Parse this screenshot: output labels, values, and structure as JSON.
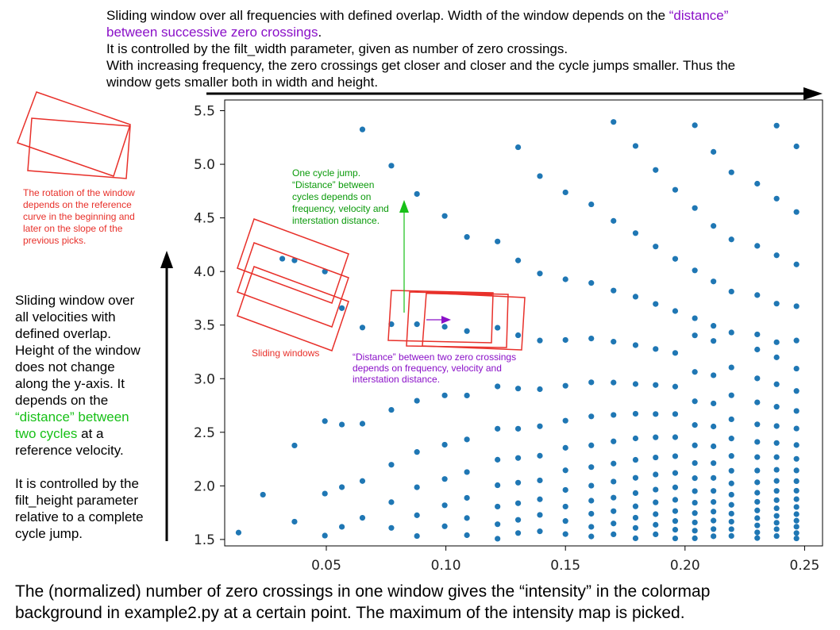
{
  "top_text": {
    "line1_a": "Sliding window over all frequencies with defined overlap. Width of the window depends on the ",
    "line1_b": "“distance”",
    "line2_a": "between successive zero crossings",
    "line2_b": ".",
    "line3": "It is controlled by the filt_width parameter, given as number of zero crossings.",
    "line4": "With increasing frequency, the zero crossings get closer and closer and the cycle jumps smaller. Thus the",
    "line5": "window gets smaller both in width and height."
  },
  "left_text": {
    "l1": "Sliding window over",
    "l2": "all velocities with",
    "l3": "defined overlap.",
    "l4": "Height of the window",
    "l5": "does not change",
    "l6": "along the y-axis. It",
    "l7": "depends on the",
    "l8": "“distance” between",
    "l9a": "two cycles",
    "l9b": " at a",
    "l10": "reference velocity.",
    "l11": "It is controlled by the",
    "l12": "filt_height parameter",
    "l13": "relative to a complete",
    "l14": "cycle jump."
  },
  "rotation_note": {
    "l1": "The rotation of the window",
    "l2": "depends on the reference",
    "l3": "curve in the beginning and",
    "l4": "later on the slope of the",
    "l5": "previous picks."
  },
  "sliding_windows_label": "Sliding windows",
  "cycle_jump_note": {
    "l1": "One cycle jump.",
    "l2": "“Distance” between",
    "l3": "cycles depends on",
    "l4": "frequency, velocity and",
    "l5": "interstation distance."
  },
  "zero_cross_note": {
    "l1": "“Distance” between two zero crossings",
    "l2": "depends on frequency, velocity and",
    "l3": "interstation distance."
  },
  "bottom_text": {
    "l1": "The (normalized) number of zero crossings in one window gives the “intensity” in the colormap",
    "l2": "background in example2.py at a certain point. The maximum of the intensity map is picked."
  },
  "colors": {
    "points": "#1f77b4",
    "windows": "#e8302a",
    "green": "#17c017",
    "purple": "#8a10c8"
  },
  "chart_data": {
    "type": "scatter",
    "xlim": [
      0.0075,
      0.2575
    ],
    "ylim": [
      1.44,
      5.6
    ],
    "xticks": [
      "0.05",
      "0.10",
      "0.15",
      "0.20",
      "0.25"
    ],
    "xtick_values": [
      0.05,
      0.1,
      0.15,
      0.2,
      0.25
    ],
    "yticks": [
      "1.5",
      "2.0",
      "2.5",
      "3.0",
      "3.5",
      "4.0",
      "4.5",
      "5.0",
      "5.5"
    ],
    "ytick_values": [
      1.5,
      2.0,
      2.5,
      3.0,
      3.5,
      4.0,
      4.5,
      5.0,
      5.5
    ],
    "grid": false,
    "points": [
      [
        0.0133,
        1.564
      ],
      [
        0.0235,
        1.918
      ],
      [
        0.0367,
        1.666
      ],
      [
        0.0367,
        2.377
      ],
      [
        0.0316,
        4.119
      ],
      [
        0.0367,
        4.104
      ],
      [
        0.0494,
        4.0
      ],
      [
        0.0494,
        1.536
      ],
      [
        0.0494,
        1.928
      ],
      [
        0.0494,
        2.604
      ],
      [
        0.0565,
        1.618
      ],
      [
        0.0565,
        1.988
      ],
      [
        0.0565,
        2.572
      ],
      [
        0.0565,
        3.658
      ],
      [
        0.0651,
        1.702
      ],
      [
        0.0651,
        2.045
      ],
      [
        0.0651,
        2.58
      ],
      [
        0.0651,
        3.477
      ],
      [
        0.0651,
        5.325
      ],
      [
        0.0772,
        1.608
      ],
      [
        0.0772,
        1.848
      ],
      [
        0.0772,
        2.197
      ],
      [
        0.0772,
        2.709
      ],
      [
        0.0772,
        3.508
      ],
      [
        0.0772,
        4.987
      ],
      [
        0.0879,
        1.532
      ],
      [
        0.0879,
        1.726
      ],
      [
        0.0879,
        1.987
      ],
      [
        0.0879,
        2.316
      ],
      [
        0.0879,
        2.794
      ],
      [
        0.0879,
        3.508
      ],
      [
        0.0879,
        4.723
      ],
      [
        0.0995,
        1.623
      ],
      [
        0.0995,
        1.819
      ],
      [
        0.0995,
        2.064
      ],
      [
        0.0995,
        2.384
      ],
      [
        0.0995,
        2.844
      ],
      [
        0.0995,
        3.484
      ],
      [
        0.0995,
        4.518
      ],
      [
        0.1088,
        1.54
      ],
      [
        0.1088,
        1.7
      ],
      [
        0.1088,
        1.888
      ],
      [
        0.1088,
        2.129
      ],
      [
        0.1088,
        2.433
      ],
      [
        0.1088,
        2.843
      ],
      [
        0.1088,
        3.444
      ],
      [
        0.1088,
        4.322
      ],
      [
        0.1216,
        1.507
      ],
      [
        0.1216,
        1.642
      ],
      [
        0.1216,
        1.807
      ],
      [
        0.1216,
        2.006
      ],
      [
        0.1216,
        2.244
      ],
      [
        0.1216,
        2.533
      ],
      [
        0.1216,
        2.928
      ],
      [
        0.1216,
        3.475
      ],
      [
        0.1216,
        4.28
      ],
      [
        0.1302,
        1.56
      ],
      [
        0.1302,
        1.683
      ],
      [
        0.1302,
        1.838
      ],
      [
        0.1302,
        2.03
      ],
      [
        0.1302,
        2.26
      ],
      [
        0.1302,
        2.533
      ],
      [
        0.1302,
        2.908
      ],
      [
        0.1302,
        3.405
      ],
      [
        0.1302,
        4.103
      ],
      [
        0.1302,
        5.159
      ],
      [
        0.1393,
        1.576
      ],
      [
        0.1393,
        1.729
      ],
      [
        0.1393,
        1.875
      ],
      [
        0.1393,
        2.051
      ],
      [
        0.1393,
        2.281
      ],
      [
        0.1393,
        2.556
      ],
      [
        0.1393,
        2.902
      ],
      [
        0.1393,
        3.356
      ],
      [
        0.1393,
        3.981
      ],
      [
        0.1393,
        4.89
      ],
      [
        0.15,
        1.55
      ],
      [
        0.15,
        1.672
      ],
      [
        0.15,
        1.807
      ],
      [
        0.15,
        1.962
      ],
      [
        0.15,
        2.145
      ],
      [
        0.15,
        2.355
      ],
      [
        0.15,
        2.608
      ],
      [
        0.15,
        2.934
      ],
      [
        0.15,
        3.361
      ],
      [
        0.15,
        3.927
      ],
      [
        0.15,
        4.738
      ],
      [
        0.1608,
        1.528
      ],
      [
        0.1608,
        1.618
      ],
      [
        0.1608,
        1.74
      ],
      [
        0.1608,
        1.862
      ],
      [
        0.1608,
        2.002
      ],
      [
        0.1608,
        2.175
      ],
      [
        0.1608,
        2.378
      ],
      [
        0.1608,
        2.648
      ],
      [
        0.1608,
        2.966
      ],
      [
        0.1608,
        3.375
      ],
      [
        0.1608,
        3.893
      ],
      [
        0.1608,
        4.626
      ],
      [
        0.1701,
        1.548
      ],
      [
        0.1701,
        1.649
      ],
      [
        0.1701,
        1.764
      ],
      [
        0.1701,
        1.89
      ],
      [
        0.1701,
        2.04
      ],
      [
        0.1701,
        2.208
      ],
      [
        0.1701,
        2.415
      ],
      [
        0.1701,
        2.662
      ],
      [
        0.1701,
        2.964
      ],
      [
        0.1701,
        3.345
      ],
      [
        0.1701,
        3.822
      ],
      [
        0.1701,
        4.472
      ],
      [
        0.1701,
        5.395
      ],
      [
        0.1793,
        1.511
      ],
      [
        0.1793,
        1.608
      ],
      [
        0.1793,
        1.703
      ],
      [
        0.1793,
        1.809
      ],
      [
        0.1793,
        1.933
      ],
      [
        0.1793,
        2.075
      ],
      [
        0.1793,
        2.243
      ],
      [
        0.1793,
        2.443
      ],
      [
        0.1793,
        2.673
      ],
      [
        0.1793,
        2.95
      ],
      [
        0.1793,
        3.313
      ],
      [
        0.1793,
        3.765
      ],
      [
        0.1793,
        4.358
      ],
      [
        0.1793,
        5.171
      ],
      [
        0.1877,
        1.548
      ],
      [
        0.1877,
        1.637
      ],
      [
        0.1877,
        1.736
      ],
      [
        0.1877,
        1.846
      ],
      [
        0.1877,
        1.965
      ],
      [
        0.1877,
        2.106
      ],
      [
        0.1877,
        2.265
      ],
      [
        0.1877,
        2.453
      ],
      [
        0.1877,
        2.67
      ],
      [
        0.1877,
        2.941
      ],
      [
        0.1877,
        3.277
      ],
      [
        0.1877,
        3.697
      ],
      [
        0.1877,
        4.233
      ],
      [
        0.1877,
        4.947
      ],
      [
        0.1959,
        1.51
      ],
      [
        0.1959,
        1.591
      ],
      [
        0.1959,
        1.672
      ],
      [
        0.1959,
        1.765
      ],
      [
        0.1959,
        1.87
      ],
      [
        0.1959,
        1.986
      ],
      [
        0.1959,
        2.12
      ],
      [
        0.1959,
        2.277
      ],
      [
        0.1959,
        2.454
      ],
      [
        0.1959,
        2.67
      ],
      [
        0.1959,
        2.926
      ],
      [
        0.1959,
        3.24
      ],
      [
        0.1959,
        3.631
      ],
      [
        0.1959,
        4.118
      ],
      [
        0.1959,
        4.762
      ],
      [
        0.2041,
        1.511
      ],
      [
        0.2041,
        1.582
      ],
      [
        0.2041,
        1.659
      ],
      [
        0.2041,
        1.746
      ],
      [
        0.2041,
        1.843
      ],
      [
        0.2041,
        1.951
      ],
      [
        0.2041,
        2.072
      ],
      [
        0.2041,
        2.213
      ],
      [
        0.2041,
        2.378
      ],
      [
        0.2041,
        2.568
      ],
      [
        0.2041,
        2.789
      ],
      [
        0.2041,
        3.063
      ],
      [
        0.2041,
        3.404
      ],
      [
        0.2041,
        3.564
      ],
      [
        0.2041,
        4.01
      ],
      [
        0.2041,
        4.592
      ],
      [
        0.2041,
        5.364
      ],
      [
        0.2119,
        1.53
      ],
      [
        0.2119,
        1.597
      ],
      [
        0.2119,
        1.676
      ],
      [
        0.2119,
        1.76
      ],
      [
        0.2119,
        1.85
      ],
      [
        0.2119,
        1.953
      ],
      [
        0.2119,
        2.074
      ],
      [
        0.2119,
        2.212
      ],
      [
        0.2119,
        2.369
      ],
      [
        0.2119,
        2.554
      ],
      [
        0.2119,
        2.769
      ],
      [
        0.2119,
        3.032
      ],
      [
        0.2119,
        3.352
      ],
      [
        0.2119,
        3.493
      ],
      [
        0.2119,
        3.907
      ],
      [
        0.2119,
        4.425
      ],
      [
        0.2119,
        5.116
      ],
      [
        0.2194,
        1.533
      ],
      [
        0.2194,
        1.596
      ],
      [
        0.2194,
        1.666
      ],
      [
        0.2194,
        1.741
      ],
      [
        0.2194,
        1.823
      ],
      [
        0.2194,
        1.918
      ],
      [
        0.2194,
        2.023
      ],
      [
        0.2194,
        2.141
      ],
      [
        0.2194,
        2.279
      ],
      [
        0.2194,
        2.442
      ],
      [
        0.2194,
        2.621
      ],
      [
        0.2194,
        2.845
      ],
      [
        0.2194,
        3.105
      ],
      [
        0.2194,
        3.431
      ],
      [
        0.2194,
        3.813
      ],
      [
        0.2194,
        4.299
      ],
      [
        0.2194,
        4.925
      ],
      [
        0.2302,
        1.513
      ],
      [
        0.2302,
        1.566
      ],
      [
        0.2302,
        1.631
      ],
      [
        0.2302,
        1.699
      ],
      [
        0.2302,
        1.771
      ],
      [
        0.2302,
        1.851
      ],
      [
        0.2302,
        1.936
      ],
      [
        0.2302,
        2.033
      ],
      [
        0.2302,
        2.143
      ],
      [
        0.2302,
        2.268
      ],
      [
        0.2302,
        2.41
      ],
      [
        0.2302,
        2.574
      ],
      [
        0.2302,
        2.779
      ],
      [
        0.2302,
        3.003
      ],
      [
        0.2302,
        3.272
      ],
      [
        0.2302,
        3.413
      ],
      [
        0.2302,
        3.78
      ],
      [
        0.2302,
        4.239
      ],
      [
        0.2302,
        4.819
      ],
      [
        0.2383,
        1.532
      ],
      [
        0.2383,
        1.596
      ],
      [
        0.2383,
        1.656
      ],
      [
        0.2383,
        1.72
      ],
      [
        0.2383,
        1.791
      ],
      [
        0.2383,
        1.867
      ],
      [
        0.2383,
        1.953
      ],
      [
        0.2383,
        2.046
      ],
      [
        0.2383,
        2.15
      ],
      [
        0.2383,
        2.268
      ],
      [
        0.2383,
        2.4
      ],
      [
        0.2383,
        2.558
      ],
      [
        0.2383,
        2.738
      ],
      [
        0.2383,
        2.948
      ],
      [
        0.2383,
        3.199
      ],
      [
        0.2383,
        3.34
      ],
      [
        0.2383,
        3.7
      ],
      [
        0.2383,
        4.151
      ],
      [
        0.2383,
        4.68
      ],
      [
        0.2383,
        5.361
      ],
      [
        0.2466,
        1.51
      ],
      [
        0.2466,
        1.56
      ],
      [
        0.2466,
        1.619
      ],
      [
        0.2466,
        1.675
      ],
      [
        0.2466,
        1.736
      ],
      [
        0.2466,
        1.803
      ],
      [
        0.2466,
        1.876
      ],
      [
        0.2466,
        1.955
      ],
      [
        0.2466,
        2.044
      ],
      [
        0.2466,
        2.144
      ],
      [
        0.2466,
        2.252
      ],
      [
        0.2466,
        2.381
      ],
      [
        0.2466,
        2.535
      ],
      [
        0.2466,
        2.699
      ],
      [
        0.2466,
        2.885
      ],
      [
        0.2466,
        3.094
      ],
      [
        0.2466,
        3.356
      ],
      [
        0.2466,
        3.676
      ],
      [
        0.2466,
        4.066
      ],
      [
        0.2466,
        4.555
      ],
      [
        0.2466,
        5.167
      ]
    ]
  }
}
